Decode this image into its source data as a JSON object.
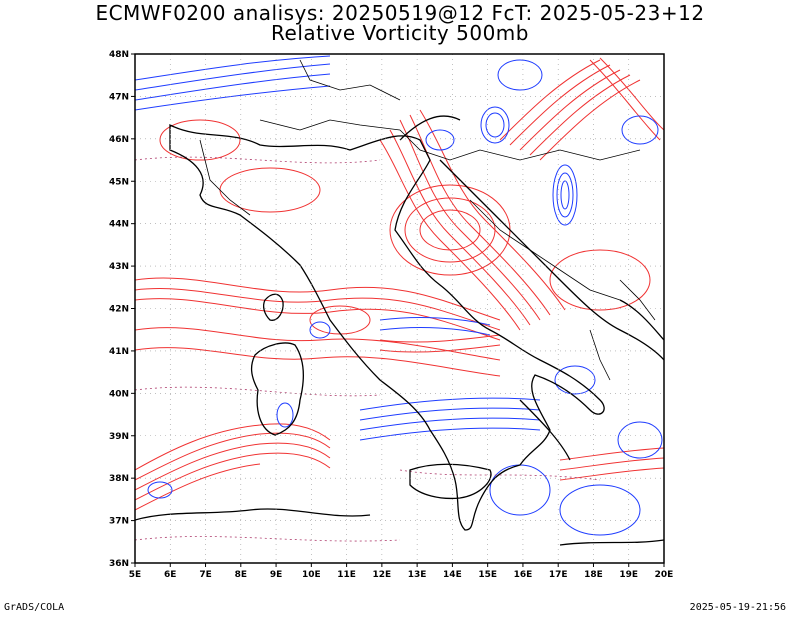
{
  "title": {
    "line1": "ECMWF0200 analisys: 20250519@12 FcT: 2025-05-23+12",
    "line2": "Relative Vorticity 500mb"
  },
  "axes": {
    "lon_labels": [
      "5E",
      "6E",
      "7E",
      "8E",
      "9E",
      "10E",
      "11E",
      "12E",
      "13E",
      "14E",
      "15E",
      "16E",
      "17E",
      "18E",
      "19E",
      "20E"
    ],
    "lat_labels": [
      "48N",
      "47N",
      "46N",
      "45N",
      "44N",
      "43N",
      "42N",
      "41N",
      "40N",
      "39N",
      "38N",
      "37N",
      "36N"
    ],
    "lon_range": [
      5,
      20
    ],
    "lat_range": [
      36,
      48
    ]
  },
  "colors": {
    "positive_contour": "#f03232",
    "negative_contour": "#1e3cff",
    "coastline": "#000000",
    "frame": "#000000"
  },
  "footer": {
    "left": "GrADS/COLA",
    "right": "2025-05-19-21:56"
  }
}
